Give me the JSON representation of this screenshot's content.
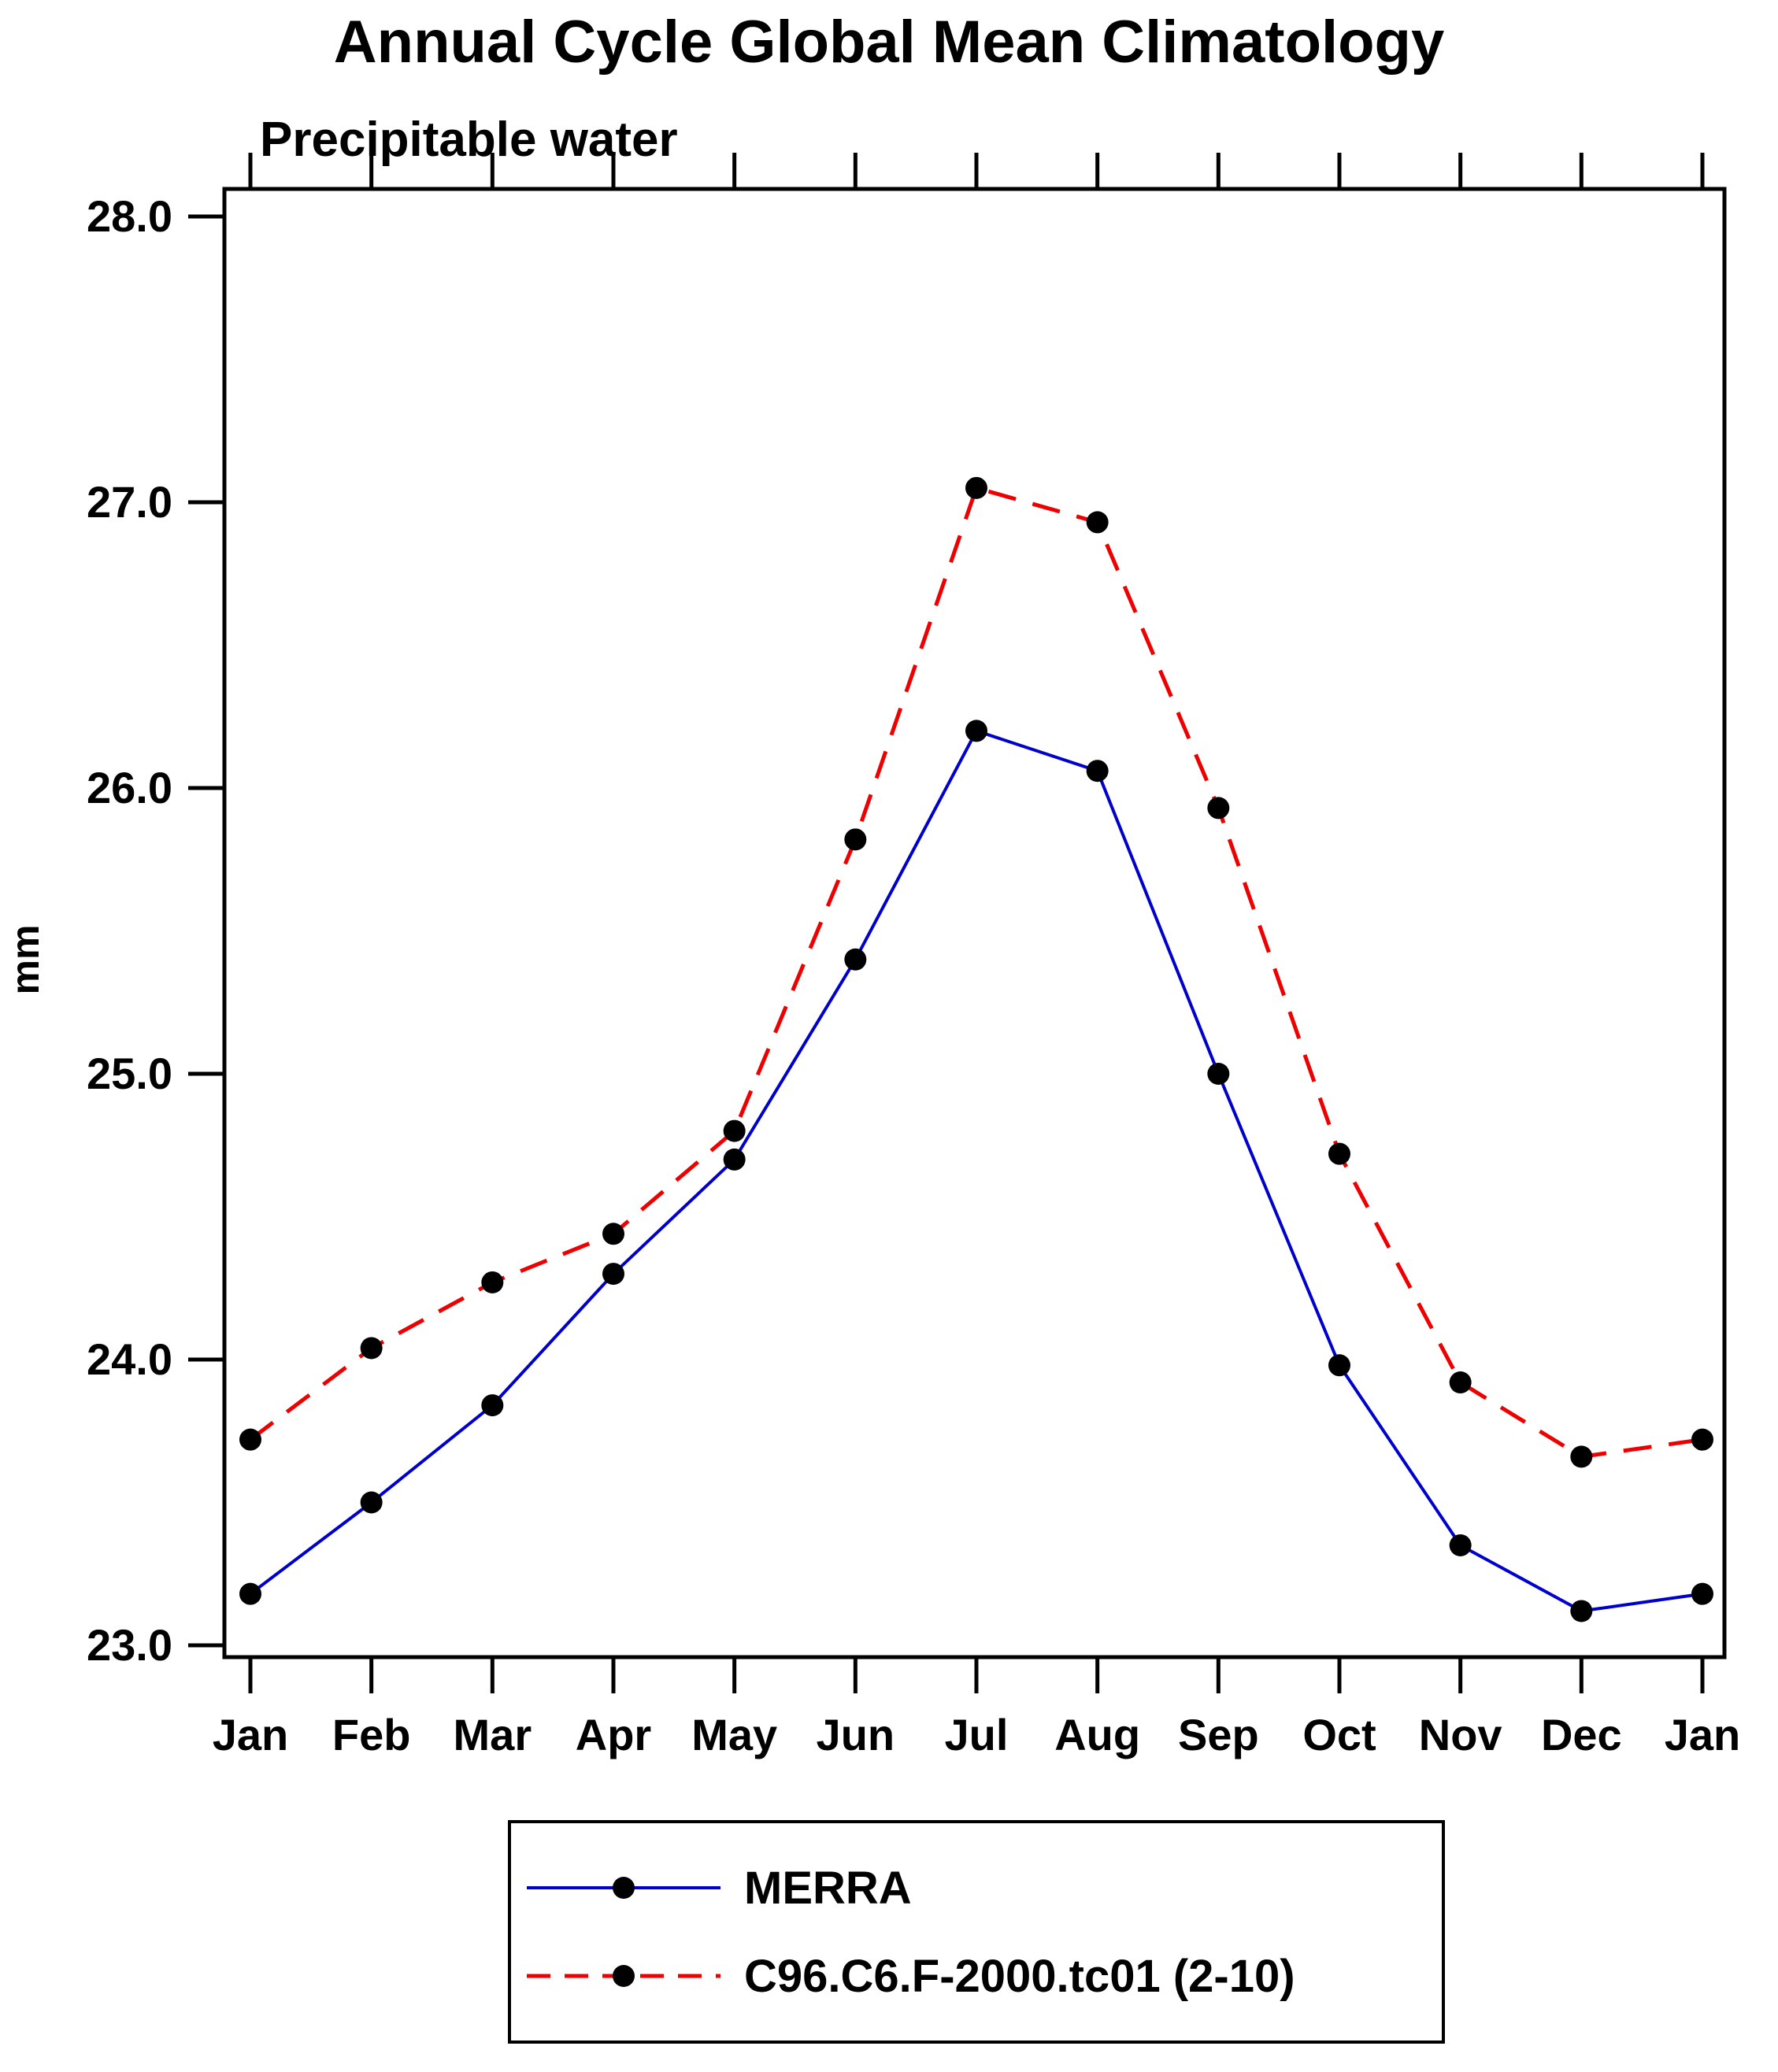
{
  "chart_data": {
    "type": "line",
    "title": "Annual Cycle Global Mean Climatology",
    "subtitle": "Precipitable water",
    "ylabel": "mm",
    "xlabel": "",
    "ylim": [
      23.0,
      28.0
    ],
    "yticks": [
      23.0,
      24.0,
      25.0,
      26.0,
      27.0,
      28.0
    ],
    "ytick_labels": [
      "23.0",
      "24.0",
      "25.0",
      "26.0",
      "27.0",
      "28.0"
    ],
    "categories": [
      "Jan",
      "Feb",
      "Mar",
      "Apr",
      "May",
      "Jun",
      "Jul",
      "Aug",
      "Sep",
      "Oct",
      "Nov",
      "Dec",
      "Jan"
    ],
    "marker_color": "#000000",
    "axis_color": "#000000",
    "grid": false,
    "legend_position": "bottom",
    "series": [
      {
        "name": "MERRA",
        "color": "#0000cc",
        "dashed": false,
        "values": [
          23.18,
          23.5,
          23.84,
          24.3,
          24.7,
          25.4,
          26.2,
          26.06,
          25.0,
          23.98,
          23.35,
          23.12,
          23.18
        ]
      },
      {
        "name": "C96.C6.F-2000.tc01 (2-10)",
        "color": "#ee0000",
        "dashed": true,
        "values": [
          23.72,
          24.04,
          24.27,
          24.44,
          24.8,
          25.82,
          27.05,
          26.93,
          25.93,
          24.72,
          23.92,
          23.66,
          23.72
        ]
      }
    ]
  }
}
